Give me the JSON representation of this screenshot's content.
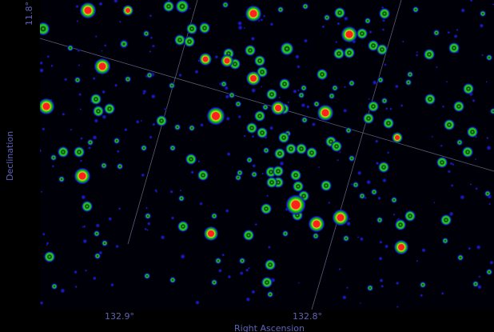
{
  "axes": {
    "x_title": "Right Ascension",
    "y_title": "Declination",
    "x_ticks": [
      "132.9°",
      "132.8°"
    ],
    "y_ticks": [
      "11.8°"
    ]
  },
  "colors": {
    "background": "#000008",
    "label": "#5f63b8",
    "grid": "#6a6e8a",
    "star_core": "#ff1a1a",
    "star_ring": "#18e018",
    "star_halo": "#1a1aff"
  }
}
